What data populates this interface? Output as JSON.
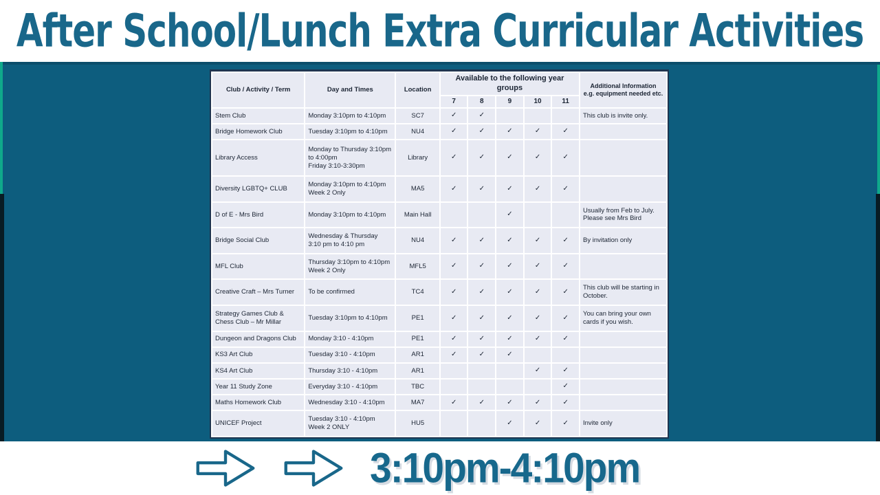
{
  "title": "After School/Lunch Extra Curricular Activities",
  "footer": {
    "time_range": "3:10pm-4:10pm",
    "arrow_icon": "right-arrow"
  },
  "colors": {
    "teal_background": "#0d5d7e",
    "accent_text": "#19678a",
    "table_border": "#1f3550",
    "cell_background": "#e8eaf3",
    "edge_green": "#0fa98b"
  },
  "table": {
    "headers": {
      "club": "Club / Activity / Term",
      "day": "Day and Times",
      "location": "Location",
      "years_group": "Available to the following year groups",
      "year_cols": [
        "7",
        "8",
        "9",
        "10",
        "11"
      ],
      "info_line1": "Additional Information",
      "info_line2": "e.g. equipment needed etc."
    },
    "check_glyph": "✓",
    "rows": [
      {
        "club": "Stem Club",
        "day": "Monday 3:10pm to 4:10pm",
        "location": "SC7",
        "years": [
          true,
          true,
          false,
          false,
          false
        ],
        "info": "This club is invite only."
      },
      {
        "club": "Bridge Homework Club",
        "day": "Tuesday 3:10pm to 4:10pm",
        "location": "NU4",
        "years": [
          true,
          true,
          true,
          true,
          true
        ],
        "info": ""
      },
      {
        "club": "Library Access",
        "day": "Monday to Thursday 3:10pm to 4:00pm\nFriday 3:10-3:30pm",
        "location": "Library",
        "years": [
          true,
          true,
          true,
          true,
          true
        ],
        "info": ""
      },
      {
        "club": "Diversity LGBTQ+ CLUB",
        "day": "Monday 3:10pm to 4:10pm\nWeek 2 Only",
        "location": "MA5",
        "years": [
          true,
          true,
          true,
          true,
          true
        ],
        "info": ""
      },
      {
        "club": "D of E - Mrs Bird",
        "day": "Monday 3:10pm to 4:10pm",
        "location": "Main Hall",
        "years": [
          false,
          false,
          true,
          false,
          false
        ],
        "info": "Usually from Feb to July. Please see Mrs Bird"
      },
      {
        "club": "Bridge Social Club",
        "day": "Wednesday & Thursday\n3:10 pm to 4:10 pm",
        "location": "NU4",
        "years": [
          true,
          true,
          true,
          true,
          true
        ],
        "info": "By invitation only"
      },
      {
        "club": "MFL Club",
        "day": "Thursday 3:10pm to 4:10pm\nWeek 2 Only",
        "location": "MFL5",
        "years": [
          true,
          true,
          true,
          true,
          true
        ],
        "info": ""
      },
      {
        "club": "Creative Craft – Mrs Turner",
        "day": "To be confirmed",
        "location": "TC4",
        "years": [
          true,
          true,
          true,
          true,
          true
        ],
        "info": "This club will be starting in October."
      },
      {
        "club": "Strategy Games Club &\nChess Club – Mr Millar",
        "day": "Tuesday 3:10pm to 4:10pm",
        "location": "PE1",
        "years": [
          true,
          true,
          true,
          true,
          true
        ],
        "info": "You can bring your own cards if you wish."
      },
      {
        "club": "Dungeon and Dragons Club",
        "day": "Monday 3:10 - 4:10pm",
        "location": "PE1",
        "years": [
          true,
          true,
          true,
          true,
          true
        ],
        "info": ""
      },
      {
        "club": "KS3 Art Club",
        "day": "Tuesday 3:10 - 4:10pm",
        "location": "AR1",
        "years": [
          true,
          true,
          true,
          false,
          false
        ],
        "info": ""
      },
      {
        "club": "KS4 Art Club",
        "day": "Thursday 3:10 - 4:10pm",
        "location": "AR1",
        "years": [
          false,
          false,
          false,
          true,
          true
        ],
        "info": ""
      },
      {
        "club": "Year 11 Study Zone",
        "day": "Everyday 3:10 - 4:10pm",
        "location": "TBC",
        "years": [
          false,
          false,
          false,
          false,
          true
        ],
        "info": ""
      },
      {
        "club": "Maths Homework Club",
        "day": "Wednesday 3:10 - 4:10pm",
        "location": "MA7",
        "years": [
          true,
          true,
          true,
          true,
          true
        ],
        "info": ""
      },
      {
        "club": "UNICEF Project",
        "day": "Tuesday 3:10 - 4:10pm\nWeek 2 ONLY",
        "location": "HU5",
        "years": [
          false,
          false,
          true,
          true,
          true
        ],
        "info": "Invite only"
      }
    ]
  }
}
